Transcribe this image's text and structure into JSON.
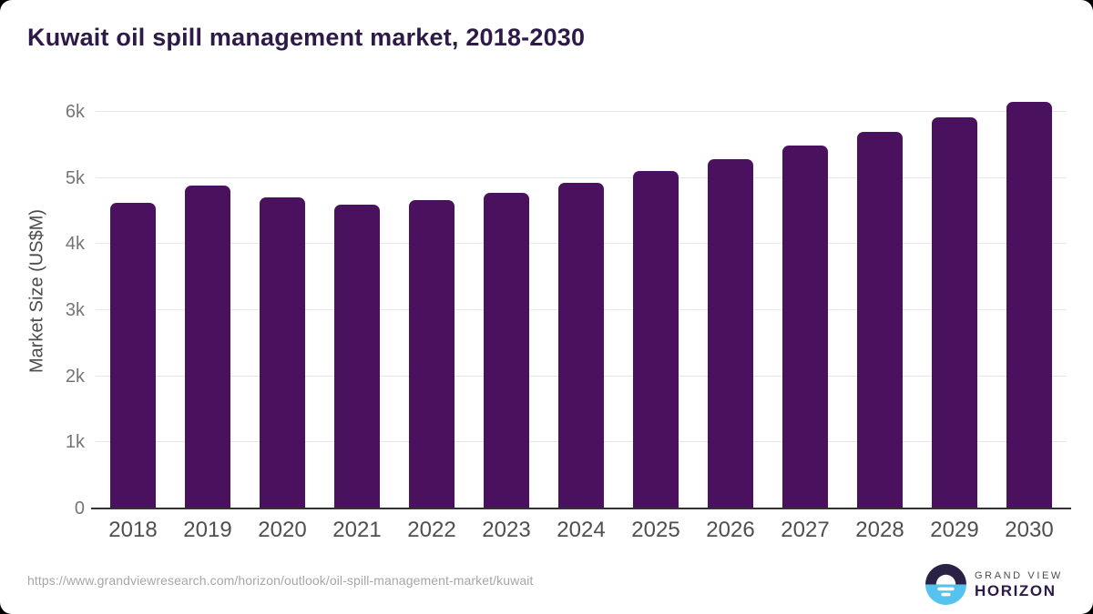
{
  "page": {
    "title": "Kuwait oil spill management market, 2018-2030"
  },
  "chart_data": {
    "type": "bar",
    "title": "Kuwait oil spill management market, 2018-2030",
    "categories": [
      "2018",
      "2019",
      "2020",
      "2021",
      "2022",
      "2023",
      "2024",
      "2025",
      "2026",
      "2027",
      "2028",
      "2029",
      "2030"
    ],
    "values": [
      4630,
      4890,
      4700,
      4590,
      4660,
      4780,
      4920,
      5100,
      5290,
      5490,
      5700,
      5920,
      6150
    ],
    "xlabel": "",
    "ylabel": "Market Size (US$M)",
    "ylim": [
      0,
      6000
    ],
    "yticks": [
      {
        "value": 0,
        "label": "0"
      },
      {
        "value": 1000,
        "label": "1k"
      },
      {
        "value": 2000,
        "label": "2k"
      },
      {
        "value": 3000,
        "label": "3k"
      },
      {
        "value": 4000,
        "label": "4k"
      },
      {
        "value": 5000,
        "label": "5k"
      },
      {
        "value": 6000,
        "label": "6k"
      }
    ],
    "grid": true,
    "legend": false,
    "bar_color": "#4a115e"
  },
  "colors": {
    "title": "#2d1a47",
    "bar": "#4a115e",
    "gridline": "#e7e7e7",
    "axis_line": "#333333",
    "tick_label": "#757575",
    "x_label": "#4f4f4f",
    "url_text": "#a6a6a6",
    "logo_dark": "#2b2144",
    "logo_blue": "#55c3ee"
  },
  "footer": {
    "source_url": "https://www.grandviewresearch.com/horizon/outlook/oil-spill-management-market/kuwait",
    "brand_top": "GRAND VIEW",
    "brand_bottom": "HORIZON"
  }
}
